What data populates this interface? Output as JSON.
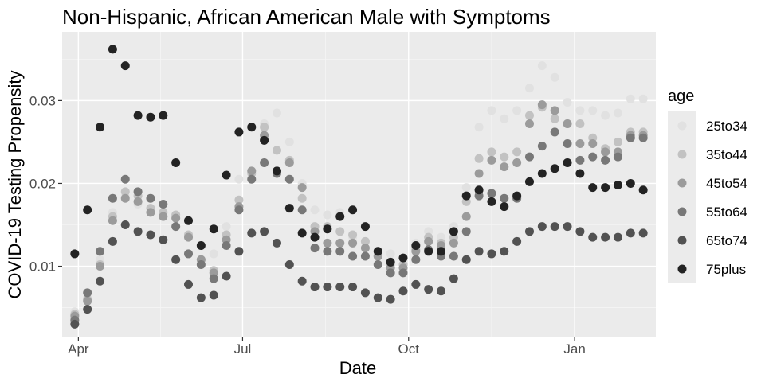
{
  "chart_data": {
    "type": "scatter",
    "title": "Non-Hispanic, African American Male with Symptoms",
    "xlabel": "Date",
    "ylabel": "COVID-19 Testing Propensity",
    "x_ticks": [
      "Apr",
      "Jul",
      "Oct",
      "Jan"
    ],
    "x_tick_dates": [
      "2020-04-01",
      "2020-07-01",
      "2020-10-01",
      "2021-01-01"
    ],
    "xlim": [
      "2020-03-23",
      "2021-02-15"
    ],
    "y_ticks": [
      "0.01",
      "0.02",
      "0.03"
    ],
    "y_tick_values": [
      0.01,
      0.02,
      0.03
    ],
    "ylim": [
      0.0015,
      0.0383
    ],
    "grid": true,
    "legend": {
      "title": "age",
      "placement": "right"
    },
    "x": [
      "2020-03-30",
      "2020-04-06",
      "2020-04-13",
      "2020-04-20",
      "2020-04-27",
      "2020-05-04",
      "2020-05-11",
      "2020-05-18",
      "2020-05-25",
      "2020-06-01",
      "2020-06-08",
      "2020-06-15",
      "2020-06-22",
      "2020-06-29",
      "2020-07-06",
      "2020-07-13",
      "2020-07-20",
      "2020-07-27",
      "2020-08-03",
      "2020-08-10",
      "2020-08-17",
      "2020-08-24",
      "2020-08-31",
      "2020-09-07",
      "2020-09-14",
      "2020-09-21",
      "2020-09-28",
      "2020-10-05",
      "2020-10-12",
      "2020-10-19",
      "2020-10-26",
      "2020-11-02",
      "2020-11-09",
      "2020-11-16",
      "2020-11-23",
      "2020-11-30",
      "2020-12-07",
      "2020-12-14",
      "2020-12-21",
      "2020-12-28",
      "2021-01-04",
      "2021-01-11",
      "2021-01-18",
      "2021-01-25",
      "2021-02-01",
      "2021-02-08"
    ],
    "series": [
      {
        "name": "25to34",
        "color": "#e1e1e1",
        "values": [
          0.0045,
          0.0062,
          0.0108,
          0.0165,
          0.0185,
          0.0175,
          0.0165,
          0.016,
          0.0148,
          0.0135,
          0.0105,
          0.0115,
          0.0148,
          0.0205,
          0.0215,
          0.0272,
          0.0285,
          0.025,
          0.02,
          0.0168,
          0.0162,
          0.0165,
          0.0135,
          0.013,
          0.0118,
          0.0115,
          0.0102,
          0.0128,
          0.0142,
          0.0135,
          0.0148,
          0.0195,
          0.0268,
          0.0288,
          0.0278,
          0.0288,
          0.0315,
          0.0342,
          0.0328,
          0.0298,
          0.0288,
          0.0288,
          0.0282,
          0.0285,
          0.0302,
          0.0302
        ]
      },
      {
        "name": "35to44",
        "color": "#c2c2c2",
        "values": [
          0.0042,
          0.006,
          0.0102,
          0.016,
          0.019,
          0.0185,
          0.017,
          0.0165,
          0.0162,
          0.0138,
          0.0108,
          0.0095,
          0.0138,
          0.018,
          0.0212,
          0.0268,
          0.024,
          0.0228,
          0.0182,
          0.0148,
          0.0148,
          0.0142,
          0.0138,
          0.013,
          0.0112,
          0.0102,
          0.0102,
          0.012,
          0.0135,
          0.0128,
          0.0135,
          0.0178,
          0.023,
          0.0238,
          0.0232,
          0.0238,
          0.0282,
          0.0292,
          0.0278,
          0.0272,
          0.0272,
          0.0255,
          0.0242,
          0.025,
          0.0262,
          0.0262
        ]
      },
      {
        "name": "45to54",
        "color": "#9b9b9b",
        "values": [
          0.004,
          0.0058,
          0.01,
          0.0155,
          0.0182,
          0.0178,
          0.0165,
          0.016,
          0.0158,
          0.0135,
          0.0108,
          0.0092,
          0.0132,
          0.0172,
          0.0215,
          0.0258,
          0.0215,
          0.0225,
          0.0195,
          0.0142,
          0.0128,
          0.0128,
          0.0128,
          0.0122,
          0.0112,
          0.0098,
          0.0098,
          0.0118,
          0.013,
          0.0125,
          0.0128,
          0.016,
          0.0212,
          0.0228,
          0.022,
          0.0225,
          0.0272,
          0.0295,
          0.0288,
          0.0272,
          0.0248,
          0.0248,
          0.0238,
          0.0238,
          0.0258,
          0.0258
        ]
      },
      {
        "name": "55to64",
        "color": "#787878",
        "values": [
          0.0035,
          0.0068,
          0.0118,
          0.0182,
          0.0205,
          0.019,
          0.0182,
          0.0175,
          0.0148,
          0.0115,
          0.0102,
          0.0085,
          0.0125,
          0.0168,
          0.0205,
          0.0225,
          0.0212,
          0.0205,
          0.0168,
          0.0122,
          0.0118,
          0.0118,
          0.0112,
          0.0112,
          0.0102,
          0.0092,
          0.0092,
          0.0108,
          0.012,
          0.0112,
          0.0112,
          0.0142,
          0.0185,
          0.0188,
          0.0182,
          0.0182,
          0.0232,
          0.0245,
          0.0262,
          0.0248,
          0.0228,
          0.0232,
          0.0228,
          0.0232,
          0.0255,
          0.0255
        ]
      },
      {
        "name": "65to74",
        "color": "#525252",
        "values": [
          0.003,
          0.0048,
          0.0082,
          0.013,
          0.015,
          0.0142,
          0.0138,
          0.0132,
          0.0108,
          0.0078,
          0.0062,
          0.0065,
          0.0088,
          0.0118,
          0.014,
          0.0142,
          0.0128,
          0.0102,
          0.0082,
          0.0075,
          0.0075,
          0.0075,
          0.0075,
          0.0068,
          0.0062,
          0.006,
          0.007,
          0.0078,
          0.0072,
          0.007,
          0.0085,
          0.0108,
          0.0118,
          0.0115,
          0.0118,
          0.013,
          0.0142,
          0.0148,
          0.0148,
          0.0148,
          0.0142,
          0.0135,
          0.0135,
          0.0135,
          0.014,
          0.014
        ]
      },
      {
        "name": "75plus",
        "color": "#232323",
        "values": [
          0.0115,
          0.0168,
          0.0268,
          0.0362,
          0.0342,
          0.0282,
          0.028,
          0.0282,
          0.0225,
          0.0155,
          0.0125,
          0.0145,
          0.021,
          0.0262,
          0.0268,
          0.0252,
          0.0215,
          0.017,
          0.014,
          0.0135,
          0.0145,
          0.016,
          0.0168,
          0.0148,
          0.0118,
          0.0105,
          0.011,
          0.0125,
          0.0118,
          0.0118,
          0.0142,
          0.0185,
          0.0192,
          0.0178,
          0.0172,
          0.0185,
          0.0202,
          0.0212,
          0.0218,
          0.0225,
          0.0212,
          0.0195,
          0.0195,
          0.0198,
          0.02,
          0.0192
        ]
      }
    ]
  }
}
